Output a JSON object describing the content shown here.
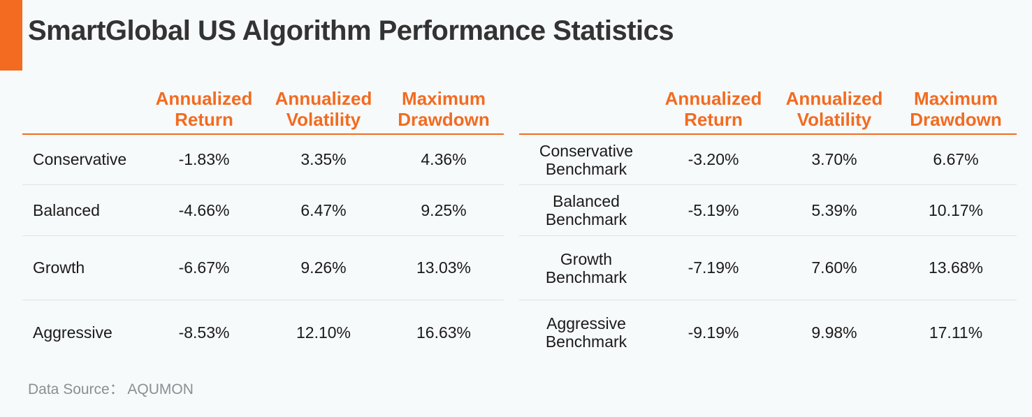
{
  "title": "SmartGlobal US Algorithm Performance Statistics",
  "colors": {
    "accent": "#f26b21",
    "background": "#f7fafb"
  },
  "columns": [
    [
      "Annualized",
      "Return"
    ],
    [
      "Annualized",
      "Volatility"
    ],
    [
      "Maximum",
      "Drawdown"
    ]
  ],
  "left_rows": [
    {
      "name": "Conservative",
      "values": [
        "-1.83%",
        "3.35%",
        "4.36%"
      ]
    },
    {
      "name": "Balanced",
      "values": [
        "-4.66%",
        "6.47%",
        "9.25%"
      ]
    },
    {
      "name": "Growth",
      "values": [
        "-6.67%",
        "9.26%",
        "13.03%"
      ]
    },
    {
      "name": "Aggressive",
      "values": [
        "-8.53%",
        "12.10%",
        "16.63%"
      ]
    }
  ],
  "right_rows": [
    {
      "name": [
        "Conservative",
        "Benchmark"
      ],
      "values": [
        "-3.20%",
        "3.70%",
        "6.67%"
      ]
    },
    {
      "name": [
        "Balanced",
        "Benchmark"
      ],
      "values": [
        "-5.19%",
        "5.39%",
        "10.17%"
      ]
    },
    {
      "name": [
        "Growth",
        "Benchmark"
      ],
      "values": [
        "-7.19%",
        "7.60%",
        "13.68%"
      ]
    },
    {
      "name": [
        "Aggressive",
        "Benchmark"
      ],
      "values": [
        "-9.19%",
        "9.98%",
        "17.11%"
      ]
    }
  ],
  "source": "Data Source： AQUMON"
}
